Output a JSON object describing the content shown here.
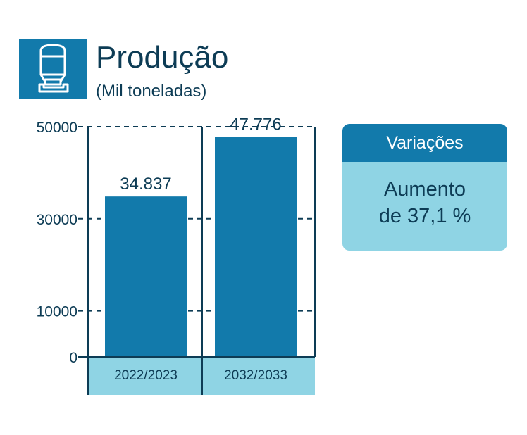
{
  "header": {
    "title": "Produção",
    "subtitle": "(Mil toneladas)",
    "icon": "silo-icon"
  },
  "chart_data": {
    "type": "bar",
    "categories": [
      "2022/2023",
      "2032/2033"
    ],
    "values": [
      34837,
      47776
    ],
    "value_labels": [
      "34.837",
      "47.776"
    ],
    "title": "Produção",
    "subtitle": "(Mil toneladas)",
    "ylim": [
      0,
      50000
    ],
    "y_ticks": [
      0,
      10000,
      30000,
      50000
    ],
    "y_tick_labels": [
      "0",
      "10000",
      "30000",
      "50000"
    ],
    "grid": true,
    "colors": {
      "bar": "#127aab",
      "axis": "#0d3c55",
      "category_band": "#8fd4e4"
    }
  },
  "variations": {
    "header": "Variações",
    "line1": "Aumento",
    "line2": "de 37,1 %"
  }
}
